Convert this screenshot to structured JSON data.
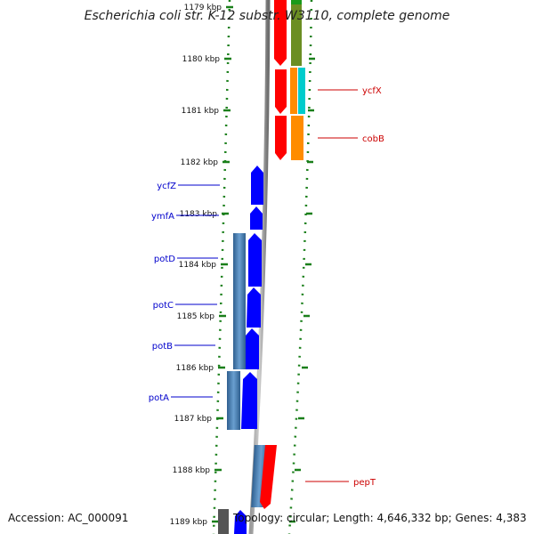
{
  "title": "Escherichia coli str. K-12 substr. W3110, complete genome",
  "footer": {
    "accession": "Accession: AC_000091",
    "info": "Topology: circular; Length: 4,646,332 bp; Genes: 4,383"
  },
  "ruler_ticks": [
    "1179 kbp",
    "1180 kbp",
    "1181 kbp",
    "1182 kbp",
    "1183 kbp",
    "1184 kbp",
    "1185 kbp",
    "1186 kbp",
    "1187 kbp",
    "1188 kbp",
    "1189 kbp"
  ],
  "genes_right": [
    {
      "name": "ycfX",
      "color": "#cc0000"
    },
    {
      "name": "cobB",
      "color": "#cc0000"
    },
    {
      "name": "pepT",
      "color": "#cc0000"
    }
  ],
  "genes_left": [
    {
      "name": "ycfZ",
      "color": "#0000cc"
    },
    {
      "name": "ymfA",
      "color": "#0000cc"
    },
    {
      "name": "potD",
      "color": "#0000cc"
    },
    {
      "name": "potC",
      "color": "#0000cc"
    },
    {
      "name": "potB",
      "color": "#0000cc"
    },
    {
      "name": "potA",
      "color": "#0000cc"
    }
  ],
  "colors": {
    "forward_gene": "#ff0000",
    "reverse_gene": "#0000ff",
    "backbone": "#888888",
    "ruler": "#1a7f1a",
    "cog_olive": "#6b8e23",
    "cog_cyan": "#00cccc",
    "cog_orange": "#ff8c00",
    "cog_steel": "#4682b4"
  }
}
